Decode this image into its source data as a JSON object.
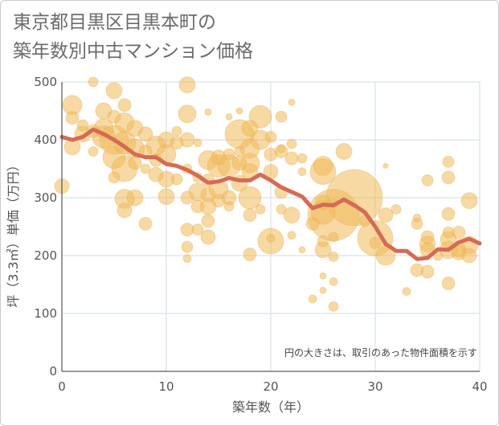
{
  "title_line1": "東京都目黒区目黒本町の",
  "title_line2": "築年数別中古マンション価格",
  "chart_data": {
    "type": "scatter",
    "xlabel": "築年数（年）",
    "ylabel": "坪（3.3㎡）単価（万円）",
    "xlim": [
      0,
      40
    ],
    "ylim": [
      0,
      500
    ],
    "xticks": [
      0,
      10,
      20,
      30,
      40
    ],
    "yticks": [
      0,
      100,
      200,
      300,
      400,
      500
    ],
    "grid": true,
    "note": "円の大きさは、取引のあった物件面積を示す",
    "colors": {
      "bubble": "#f0b95a",
      "line": "#d56b55",
      "grid": "#cfdce6",
      "axis": "#333333"
    },
    "series": [
      {
        "type": "line",
        "x": [
          0,
          1,
          2,
          3,
          4,
          5,
          6,
          7,
          8,
          9,
          10,
          11,
          12,
          13,
          14,
          15,
          16,
          17,
          18,
          19,
          20,
          21,
          22,
          23,
          24,
          25,
          26,
          27,
          28,
          29,
          30,
          31,
          32,
          33,
          34,
          35,
          36,
          37,
          38,
          39,
          40
        ],
        "values": [
          405,
          400,
          405,
          418,
          410,
          400,
          388,
          375,
          370,
          370,
          358,
          355,
          348,
          338,
          326,
          328,
          334,
          330,
          330,
          340,
          330,
          318,
          310,
          302,
          282,
          288,
          287,
          297,
          287,
          275,
          250,
          220,
          208,
          208,
          194,
          196,
          211,
          210,
          223,
          229,
          221
        ]
      },
      {
        "type": "scatter",
        "points": [
          [
            0,
            320,
            9
          ],
          [
            1,
            460,
            12
          ],
          [
            1,
            438,
            8
          ],
          [
            1,
            388,
            10
          ],
          [
            2,
            410,
            10
          ],
          [
            2,
            425,
            7
          ],
          [
            3,
            500,
            6
          ],
          [
            3,
            415,
            8
          ],
          [
            3,
            380,
            6
          ],
          [
            4,
            450,
            10
          ],
          [
            4,
            420,
            12
          ],
          [
            4,
            405,
            14
          ],
          [
            5,
            485,
            10
          ],
          [
            5,
            440,
            8
          ],
          [
            5,
            400,
            18
          ],
          [
            5,
            370,
            14
          ],
          [
            5,
            335,
            7
          ],
          [
            6,
            460,
            8
          ],
          [
            6,
            430,
            12
          ],
          [
            6,
            395,
            14
          ],
          [
            6,
            350,
            16
          ],
          [
            6,
            298,
            12
          ],
          [
            6,
            278,
            9
          ],
          [
            7,
            420,
            10
          ],
          [
            7,
            385,
            12
          ],
          [
            7,
            360,
            8
          ],
          [
            7,
            300,
            10
          ],
          [
            8,
            410,
            9
          ],
          [
            8,
            380,
            8
          ],
          [
            8,
            350,
            6
          ],
          [
            8,
            255,
            8
          ],
          [
            9,
            390,
            12
          ],
          [
            9,
            365,
            8
          ],
          [
            9,
            340,
            9
          ],
          [
            10,
            400,
            10
          ],
          [
            10,
            375,
            12
          ],
          [
            10,
            332,
            10
          ],
          [
            10,
            302,
            10
          ],
          [
            11,
            415,
            6
          ],
          [
            11,
            395,
            8
          ],
          [
            11,
            332,
            7
          ],
          [
            12,
            495,
            10
          ],
          [
            12,
            445,
            11
          ],
          [
            12,
            400,
            9
          ],
          [
            12,
            350,
            6
          ],
          [
            12,
            300,
            8
          ],
          [
            12,
            245,
            8
          ],
          [
            12,
            215,
            7
          ],
          [
            12,
            195,
            5
          ],
          [
            13,
            395,
            5
          ],
          [
            13,
            335,
            6
          ],
          [
            13,
            310,
            11
          ],
          [
            13,
            285,
            8
          ],
          [
            13,
            245,
            7
          ],
          [
            14,
            448,
            4
          ],
          [
            14,
            365,
            12
          ],
          [
            14,
            330,
            8
          ],
          [
            14,
            305,
            9
          ],
          [
            14,
            285,
            10
          ],
          [
            14,
            260,
            8
          ],
          [
            14,
            232,
            9
          ],
          [
            15,
            370,
            9
          ],
          [
            15,
            355,
            14
          ],
          [
            15,
            315,
            12
          ],
          [
            15,
            295,
            8
          ],
          [
            16,
            440,
            4
          ],
          [
            16,
            375,
            7
          ],
          [
            16,
            355,
            14
          ],
          [
            16,
            300,
            9
          ],
          [
            16,
            285,
            6
          ],
          [
            17,
            450,
            4
          ],
          [
            17,
            410,
            18
          ],
          [
            17,
            380,
            6
          ],
          [
            17,
            360,
            9
          ],
          [
            17,
            325,
            10
          ],
          [
            18,
            420,
            10
          ],
          [
            18,
            385,
            12
          ],
          [
            18,
            360,
            12
          ],
          [
            18,
            345,
            10
          ],
          [
            18,
            300,
            14
          ],
          [
            18,
            270,
            8
          ],
          [
            18,
            202,
            8
          ],
          [
            19,
            440,
            14
          ],
          [
            19,
            400,
            12
          ],
          [
            19,
            280,
            6
          ],
          [
            20,
            405,
            7
          ],
          [
            20,
            375,
            8
          ],
          [
            20,
            345,
            9
          ],
          [
            20,
            230,
            5
          ],
          [
            20,
            225,
            16
          ],
          [
            21,
            440,
            7
          ],
          [
            21,
            385,
            5
          ],
          [
            21,
            380,
            8
          ],
          [
            21,
            310,
            8
          ],
          [
            21,
            280,
            6
          ],
          [
            22,
            465,
            4
          ],
          [
            22,
            393,
            6
          ],
          [
            22,
            368,
            8
          ],
          [
            22,
            270,
            10
          ],
          [
            22,
            235,
            5
          ],
          [
            23,
            368,
            6
          ],
          [
            23,
            345,
            5
          ],
          [
            23,
            210,
            4
          ],
          [
            24,
            255,
            8
          ],
          [
            24,
            125,
            5
          ],
          [
            25,
            355,
            12
          ],
          [
            25,
            345,
            16
          ],
          [
            25,
            292,
            9
          ],
          [
            25,
            275,
            15
          ],
          [
            25,
            225,
            7
          ],
          [
            25,
            210,
            10
          ],
          [
            25,
            165,
            4
          ],
          [
            25,
            140,
            4
          ],
          [
            26,
            290,
            5
          ],
          [
            26,
            270,
            32
          ],
          [
            26,
            232,
            6
          ],
          [
            26,
            198,
            6
          ],
          [
            26,
            155,
            5
          ],
          [
            26,
            112,
            6
          ],
          [
            27,
            380,
            10
          ],
          [
            28,
            300,
            35
          ],
          [
            29,
            260,
            7
          ],
          [
            30,
            230,
            22
          ],
          [
            30,
            222,
            7
          ],
          [
            31,
            355,
            3
          ],
          [
            31,
            270,
            9
          ],
          [
            31,
            200,
            12
          ],
          [
            32,
            280,
            6
          ],
          [
            33,
            138,
            5
          ],
          [
            34,
            265,
            5
          ],
          [
            34,
            255,
            7
          ],
          [
            34,
            175,
            8
          ],
          [
            35,
            330,
            7
          ],
          [
            35,
            232,
            8
          ],
          [
            35,
            220,
            10
          ],
          [
            35,
            210,
            9
          ],
          [
            35,
            172,
            8
          ],
          [
            36,
            200,
            6
          ],
          [
            37,
            362,
            7
          ],
          [
            37,
            335,
            8
          ],
          [
            37,
            272,
            8
          ],
          [
            37,
            240,
            7
          ],
          [
            37,
            228,
            10
          ],
          [
            37,
            210,
            11
          ],
          [
            37,
            152,
            8
          ],
          [
            38,
            240,
            8
          ],
          [
            38,
            210,
            9
          ],
          [
            38,
            205,
            9
          ],
          [
            39,
            295,
            10
          ],
          [
            39,
            218,
            11
          ],
          [
            39,
            200,
            9
          ]
        ]
      }
    ]
  }
}
